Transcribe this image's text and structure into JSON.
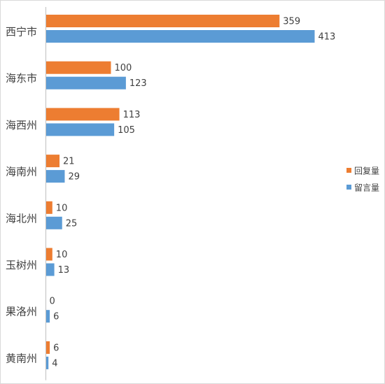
{
  "chart_data": {
    "type": "bar",
    "orientation": "horizontal",
    "categories": [
      "西宁市",
      "海东市",
      "海西州",
      "海南州",
      "海北州",
      "玉树州",
      "果洛州",
      "黄南州"
    ],
    "series": [
      {
        "name": "回复量",
        "values": [
          359,
          100,
          113,
          21,
          10,
          10,
          0,
          6
        ],
        "color": "#ED7D31"
      },
      {
        "name": "留言量",
        "values": [
          413,
          123,
          105,
          29,
          25,
          13,
          6,
          4
        ],
        "color": "#5B9BD5"
      }
    ],
    "data_labels": true,
    "legend_position": "right",
    "grid": false
  }
}
